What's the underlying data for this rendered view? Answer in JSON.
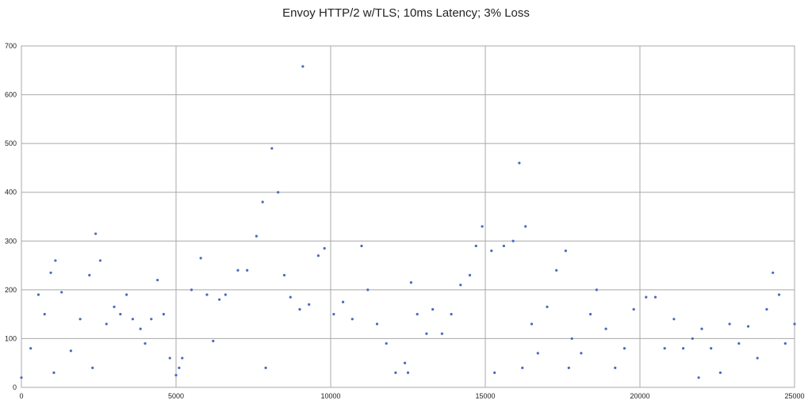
{
  "chart_data": {
    "type": "scatter",
    "title": "Envoy HTTP/2 w/TLS; 10ms Latency; 3% Loss",
    "xlabel": "",
    "ylabel": "",
    "xlim": [
      0,
      25000
    ],
    "ylim": [
      0,
      700
    ],
    "x_ticks": [
      "0",
      "5000",
      "10000",
      "15000",
      "20000",
      "25000"
    ],
    "y_ticks": [
      "0",
      "100",
      "200",
      "300",
      "400",
      "500",
      "600",
      "700"
    ],
    "grid": true,
    "legend": "none",
    "series": [
      {
        "color": "#4a68c0",
        "points": [
          [
            0,
            20
          ],
          [
            300,
            80
          ],
          [
            550,
            190
          ],
          [
            750,
            150
          ],
          [
            950,
            235
          ],
          [
            1100,
            260
          ],
          [
            1300,
            195
          ],
          [
            1600,
            75
          ],
          [
            1900,
            140
          ],
          [
            2200,
            230
          ],
          [
            2400,
            315
          ],
          [
            2550,
            260
          ],
          [
            2750,
            130
          ],
          [
            3000,
            165
          ],
          [
            3200,
            150
          ],
          [
            3400,
            190
          ],
          [
            3600,
            140
          ],
          [
            3850,
            120
          ],
          [
            4000,
            90
          ],
          [
            4200,
            140
          ],
          [
            4400,
            220
          ],
          [
            4600,
            150
          ],
          [
            4800,
            60
          ],
          [
            5000,
            25
          ],
          [
            5200,
            60
          ],
          [
            5500,
            200
          ],
          [
            5800,
            265
          ],
          [
            6000,
            190
          ],
          [
            6200,
            95
          ],
          [
            6400,
            180
          ],
          [
            6600,
            190
          ],
          [
            7000,
            240
          ],
          [
            7300,
            240
          ],
          [
            7600,
            310
          ],
          [
            7800,
            380
          ],
          [
            8100,
            490
          ],
          [
            8300,
            400
          ],
          [
            8500,
            230
          ],
          [
            8700,
            185
          ],
          [
            9000,
            160
          ],
          [
            9300,
            170
          ],
          [
            9600,
            270
          ],
          [
            9800,
            285
          ],
          [
            10100,
            150
          ],
          [
            10400,
            175
          ],
          [
            10700,
            140
          ],
          [
            11000,
            290
          ],
          [
            11200,
            200
          ],
          [
            11500,
            130
          ],
          [
            11800,
            90
          ],
          [
            12100,
            30
          ],
          [
            12400,
            50
          ],
          [
            12600,
            215
          ],
          [
            12800,
            150
          ],
          [
            13100,
            110
          ],
          [
            13300,
            160
          ],
          [
            13600,
            110
          ],
          [
            13900,
            150
          ],
          [
            14200,
            210
          ],
          [
            14500,
            230
          ],
          [
            14700,
            290
          ],
          [
            14900,
            330
          ],
          [
            15200,
            280
          ],
          [
            15600,
            290
          ],
          [
            15900,
            300
          ],
          [
            16100,
            460
          ],
          [
            16300,
            330
          ],
          [
            16500,
            130
          ],
          [
            16700,
            70
          ],
          [
            17000,
            165
          ],
          [
            17300,
            240
          ],
          [
            17600,
            280
          ],
          [
            17800,
            100
          ],
          [
            18100,
            70
          ],
          [
            18400,
            150
          ],
          [
            18600,
            200
          ],
          [
            18900,
            120
          ],
          [
            19200,
            40
          ],
          [
            19500,
            80
          ],
          [
            19800,
            160
          ],
          [
            20200,
            185
          ],
          [
            20500,
            185
          ],
          [
            20800,
            80
          ],
          [
            21100,
            140
          ],
          [
            21400,
            80
          ],
          [
            21700,
            100
          ],
          [
            22000,
            120
          ],
          [
            22300,
            80
          ],
          [
            22600,
            30
          ],
          [
            22900,
            130
          ],
          [
            23200,
            90
          ],
          [
            23500,
            125
          ],
          [
            23800,
            60
          ],
          [
            24100,
            160
          ],
          [
            24300,
            235
          ],
          [
            24500,
            190
          ],
          [
            24700,
            90
          ],
          [
            25000,
            130
          ],
          [
            1050,
            30
          ],
          [
            2300,
            40
          ],
          [
            5100,
            40
          ],
          [
            7900,
            40
          ],
          [
            9100,
            658
          ],
          [
            12500,
            30
          ],
          [
            15300,
            30
          ],
          [
            16200,
            40
          ],
          [
            17700,
            40
          ],
          [
            21900,
            20
          ]
        ]
      }
    ]
  }
}
